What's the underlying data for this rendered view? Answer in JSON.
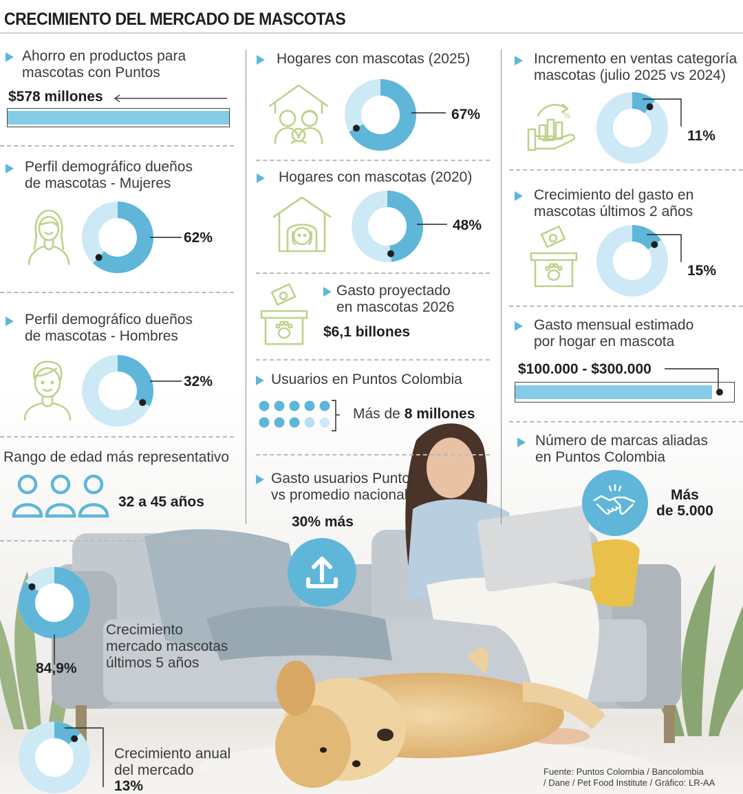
{
  "title": "CRECIMIENTO DEL MERCADO DE MASCOTAS",
  "colors": {
    "accent": "#5fb6d9",
    "light": "#cde9f6",
    "icon": "#bcd28a",
    "text": "#2b2b2b"
  },
  "left": {
    "savings": {
      "label1": "Ahorro en productos para",
      "label2": "mascotas con Puntos",
      "value": "$578 millones"
    },
    "women": {
      "label1": "Perfil demográfico dueños",
      "label2": "de mascotas - Mujeres",
      "value": "62%",
      "fraction": 0.62,
      "icon": "woman-icon"
    },
    "men": {
      "label1": "Perfil demográfico dueños",
      "label2": "de mascotas - Hombres",
      "value": "32%",
      "fraction": 0.32,
      "icon": "man-icon"
    },
    "age": {
      "label": "Rango de edad más representativo",
      "value": "32 a 45 años",
      "icon": "people-icon"
    },
    "growth5": {
      "label1": "Crecimiento",
      "label2": "mercado mascotas",
      "label3": "últimos 5 años",
      "value": "84,9%",
      "fraction": 0.849
    },
    "annual": {
      "label1": "Crecimiento anual",
      "label2": "del mercado",
      "value": "13%",
      "fraction": 0.13
    }
  },
  "middle": {
    "homes2025": {
      "label": "Hogares con mascotas (2025)",
      "value": "67%",
      "fraction": 0.67,
      "icon": "family-house-icon"
    },
    "homes2020": {
      "label": "Hogares con mascotas (2020)",
      "value": "48%",
      "fraction": 0.48,
      "icon": "dog-house-icon"
    },
    "projected": {
      "label1": "Gasto proyectado",
      "label2": "en mascotas 2026",
      "value": "$6,1 billones",
      "icon": "pet-money-box-icon"
    },
    "users": {
      "label": "Usuarios en Puntos Colombia",
      "prefix": "Más de ",
      "value": "8 millones",
      "icon": "dots-icon"
    },
    "spend": {
      "label1": "Gasto usuarios Puntos",
      "label2": "vs promedio nacional",
      "value": "30% más",
      "icon": "upload-icon"
    }
  },
  "right": {
    "sales": {
      "label1": "Incremento en ventas categoría",
      "label2": "mascotas (julio 2025 vs 2024)",
      "value": "11%",
      "fraction": 0.11,
      "icon": "growth-hand-icon"
    },
    "spending": {
      "label1": "Crecimiento del gasto en",
      "label2": "mascotas últimos 2 años",
      "value": "15%",
      "fraction": 0.15,
      "icon": "pet-money-box-icon"
    },
    "monthly": {
      "label1": "Gasto mensual estimado",
      "label2": "por hogar en mascota",
      "value": "$100.000 - $300.000",
      "fraction": 0.9
    },
    "brands": {
      "label1": "Número de marcas aliadas",
      "label2": "en Puntos Colombia",
      "value1": "Más",
      "value2": "de 5.000",
      "icon": "handshake-icon"
    }
  },
  "source": {
    "line1": "Fuente: Puntos Colombia / Bancolombia",
    "line2": "/ Dane / Pet Food Institute / Gráfico: LR-AA"
  }
}
